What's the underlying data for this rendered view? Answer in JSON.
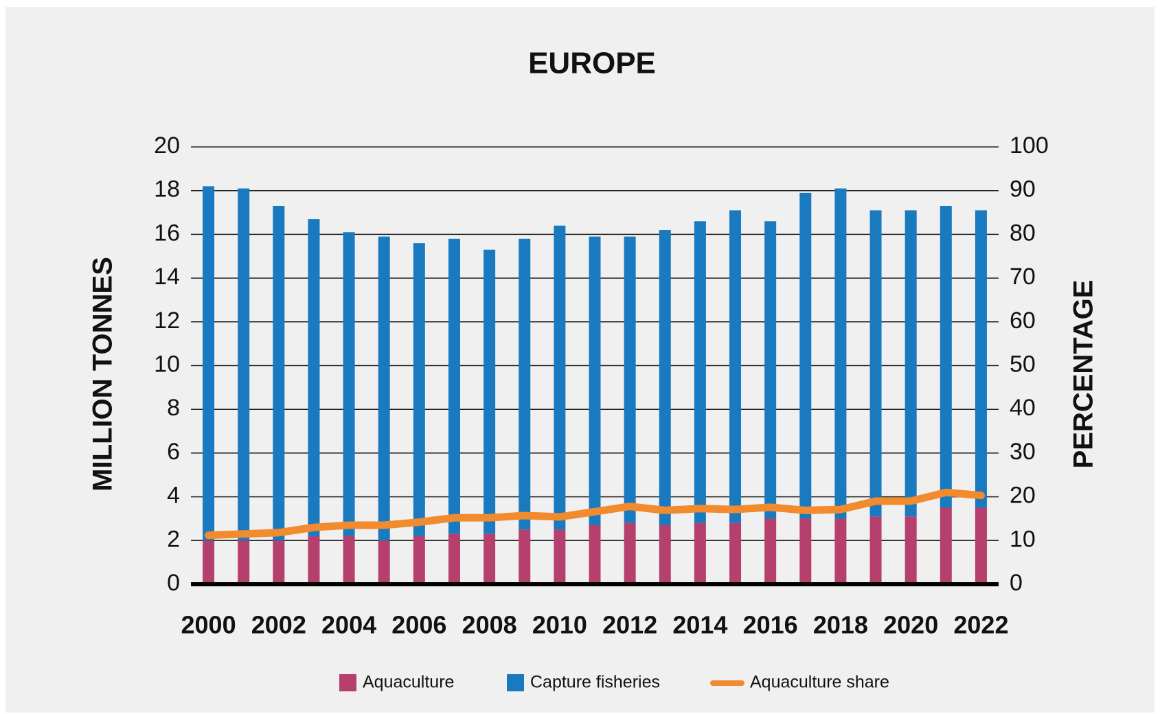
{
  "chart_data": {
    "type": "bar",
    "title": "EUROPE",
    "ylabel": "MILLION TONNES",
    "y2label": "PERCENTAGE",
    "categories": [
      "2000",
      null,
      "2002",
      null,
      "2004",
      null,
      "2006",
      null,
      "2008",
      null,
      "2010",
      null,
      "2012",
      null,
      "2014",
      null,
      "2016",
      null,
      "2018",
      null,
      "2020",
      null,
      "2022"
    ],
    "stacked": true,
    "legend": "bottom",
    "grid": true,
    "ylim": [
      0,
      20
    ],
    "yticks": [
      0,
      2,
      4,
      6,
      8,
      10,
      12,
      14,
      16,
      18,
      20
    ],
    "y2lim": [
      0,
      100
    ],
    "y2ticks": [
      0,
      10,
      20,
      30,
      40,
      50,
      60,
      70,
      80,
      90,
      100
    ],
    "series": [
      {
        "name": "Aquaculture",
        "color": "#b5406e",
        "type": "bar",
        "values": [
          2.0,
          2.0,
          2.0,
          2.2,
          2.2,
          2.0,
          2.2,
          2.3,
          2.3,
          2.5,
          2.5,
          2.7,
          2.8,
          2.7,
          2.8,
          2.8,
          3.0,
          3.0,
          3.0,
          3.1,
          3.1,
          3.5,
          3.5
        ]
      },
      {
        "name": "Capture fisheries",
        "color": "#1a7abf",
        "type": "bar",
        "values": [
          16.2,
          16.1,
          15.3,
          14.5,
          13.9,
          13.9,
          13.4,
          13.5,
          13.0,
          13.3,
          13.9,
          13.2,
          13.1,
          13.5,
          13.8,
          14.3,
          13.6,
          14.9,
          15.1,
          14.0,
          14.0,
          13.8,
          13.6
        ]
      },
      {
        "name": "Aquaculture share",
        "color": "#f28a2e",
        "type": "line",
        "axis": "y2",
        "values": [
          11.2,
          11.5,
          11.8,
          13.0,
          13.5,
          13.5,
          14.2,
          15.2,
          15.2,
          15.7,
          15.4,
          16.6,
          17.8,
          16.9,
          17.3,
          17.1,
          17.6,
          16.9,
          17.1,
          19.0,
          19.0,
          21.0,
          20.3
        ]
      }
    ]
  }
}
